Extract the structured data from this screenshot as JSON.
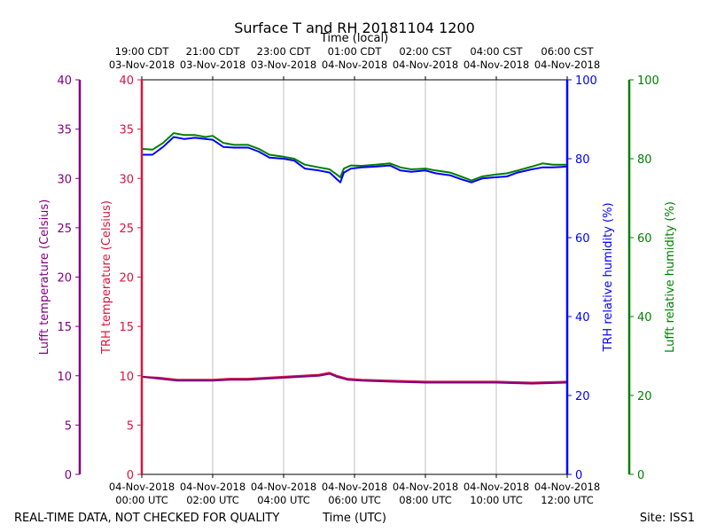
{
  "chart_data": {
    "type": "line",
    "title": "Surface T and RH 20181104 1200",
    "top_axis_label": "Time (local)",
    "xlabel": "Time (UTC)",
    "footer_left": "REAL-TIME DATA, NOT CHECKED FOR QUALITY",
    "footer_right": "Site: ISS1",
    "x_range_hours": [
      0,
      12
    ],
    "bottom_ticks": [
      {
        "hour": 0,
        "date": "04-Nov-2018",
        "time": "00:00 UTC"
      },
      {
        "hour": 2,
        "date": "04-Nov-2018",
        "time": "02:00 UTC"
      },
      {
        "hour": 4,
        "date": "04-Nov-2018",
        "time": "04:00 UTC"
      },
      {
        "hour": 6,
        "date": "04-Nov-2018",
        "time": "06:00 UTC"
      },
      {
        "hour": 8,
        "date": "04-Nov-2018",
        "time": "08:00 UTC"
      },
      {
        "hour": 10,
        "date": "04-Nov-2018",
        "time": "10:00 UTC"
      },
      {
        "hour": 12,
        "date": "04-Nov-2018",
        "time": "12:00 UTC"
      }
    ],
    "top_ticks": [
      {
        "hour": 0,
        "time": "19:00 CDT",
        "date": "03-Nov-2018"
      },
      {
        "hour": 2,
        "time": "21:00 CDT",
        "date": "03-Nov-2018"
      },
      {
        "hour": 4,
        "time": "23:00 CDT",
        "date": "03-Nov-2018"
      },
      {
        "hour": 6,
        "time": "01:00 CDT",
        "date": "04-Nov-2018"
      },
      {
        "hour": 8,
        "time": "02:00 CST",
        "date": "04-Nov-2018"
      },
      {
        "hour": 10,
        "time": "04:00 CST",
        "date": "04-Nov-2018"
      },
      {
        "hour": 12,
        "time": "06:00 CST",
        "date": "04-Nov-2018"
      }
    ],
    "axes": {
      "lufft_temp": {
        "label": "Lufft temperature (Celsius)",
        "color": "#800080",
        "ylim": [
          0,
          40
        ],
        "ticks": [
          0,
          5,
          10,
          15,
          20,
          25,
          30,
          35,
          40
        ]
      },
      "trh_temp": {
        "label": "TRH temperature (Celsius)",
        "color": "#dc143c",
        "ylim": [
          0,
          40
        ],
        "ticks": [
          0,
          5,
          10,
          15,
          20,
          25,
          30,
          35,
          40
        ]
      },
      "trh_rh": {
        "label": "TRH relative humidity (%)",
        "color": "#0000ff",
        "ylim": [
          0,
          100
        ],
        "ticks": [
          0,
          20,
          40,
          60,
          80,
          100
        ]
      },
      "lufft_rh": {
        "label": "Lufft relative humidity (%)",
        "color": "#008000",
        "ylim": [
          0,
          100
        ],
        "ticks": [
          0,
          20,
          40,
          60,
          80,
          100
        ]
      }
    },
    "series": [
      {
        "name": "Lufft relative humidity",
        "axis": "lufft_rh",
        "color": "#008000",
        "x": [
          0,
          0.3,
          0.6,
          0.9,
          1.2,
          1.5,
          1.8,
          2.0,
          2.3,
          2.6,
          3.0,
          3.3,
          3.6,
          4.0,
          4.3,
          4.6,
          5.0,
          5.3,
          5.6,
          5.7,
          5.9,
          6.2,
          6.6,
          7.0,
          7.3,
          7.6,
          8.0,
          8.3,
          8.7,
          9.0,
          9.3,
          9.6,
          10.0,
          10.3,
          10.6,
          11.0,
          11.3,
          11.6,
          12.0
        ],
        "values": [
          82.5,
          82.3,
          84,
          86.5,
          86,
          86,
          85.5,
          85.8,
          84,
          83.5,
          83.5,
          82.5,
          81,
          80.5,
          80,
          78.5,
          77.8,
          77.3,
          75.3,
          77.5,
          78.3,
          78.2,
          78.5,
          78.8,
          77.8,
          77.3,
          77.5,
          77,
          76.5,
          75.5,
          74.5,
          75.5,
          76,
          76.3,
          77,
          78,
          78.8,
          78.5,
          78.5
        ]
      },
      {
        "name": "TRH relative humidity",
        "axis": "trh_rh",
        "color": "#0000ff",
        "x": [
          0,
          0.3,
          0.6,
          0.9,
          1.2,
          1.5,
          1.8,
          2.0,
          2.3,
          2.6,
          3.0,
          3.3,
          3.6,
          4.0,
          4.3,
          4.6,
          5.0,
          5.3,
          5.6,
          5.7,
          5.9,
          6.2,
          6.6,
          7.0,
          7.3,
          7.6,
          8.0,
          8.3,
          8.7,
          9.0,
          9.3,
          9.6,
          10.0,
          10.3,
          10.6,
          11.0,
          11.3,
          11.6,
          12.0
        ],
        "values": [
          81,
          81,
          83,
          85.5,
          85,
          85.3,
          85,
          84.8,
          83,
          82.8,
          82.8,
          81.8,
          80.3,
          80,
          79.5,
          77.5,
          77,
          76.5,
          74,
          76.5,
          77.5,
          77.8,
          78,
          78.3,
          77,
          76.7,
          77,
          76.3,
          75.8,
          74.8,
          74,
          75,
          75.3,
          75.5,
          76.5,
          77.3,
          77.8,
          77.8,
          78
        ]
      },
      {
        "name": "TRH temperature",
        "axis": "trh_temp",
        "color": "#dc143c",
        "x": [
          0,
          0.5,
          1.0,
          1.5,
          2.0,
          2.5,
          3.0,
          3.5,
          4.0,
          4.5,
          5.0,
          5.3,
          5.5,
          5.8,
          6.2,
          7.0,
          8.0,
          9.0,
          10.0,
          11.0,
          12.0
        ],
        "values": [
          9.9,
          9.8,
          9.6,
          9.6,
          9.6,
          9.7,
          9.7,
          9.8,
          9.9,
          10.0,
          10.1,
          10.3,
          10.0,
          9.7,
          9.6,
          9.5,
          9.4,
          9.4,
          9.4,
          9.3,
          9.4
        ]
      },
      {
        "name": "Lufft temperature",
        "axis": "lufft_temp",
        "color": "#800080",
        "x": [
          0,
          0.5,
          1.0,
          1.5,
          2.0,
          2.5,
          3.0,
          3.5,
          4.0,
          4.5,
          5.0,
          5.3,
          5.5,
          5.8,
          6.2,
          7.0,
          8.0,
          9.0,
          10.0,
          11.0,
          12.0
        ],
        "values": [
          9.9,
          9.7,
          9.5,
          9.5,
          9.5,
          9.6,
          9.6,
          9.7,
          9.8,
          9.9,
          10.0,
          10.2,
          9.9,
          9.6,
          9.5,
          9.4,
          9.3,
          9.3,
          9.3,
          9.2,
          9.3
        ]
      }
    ]
  }
}
